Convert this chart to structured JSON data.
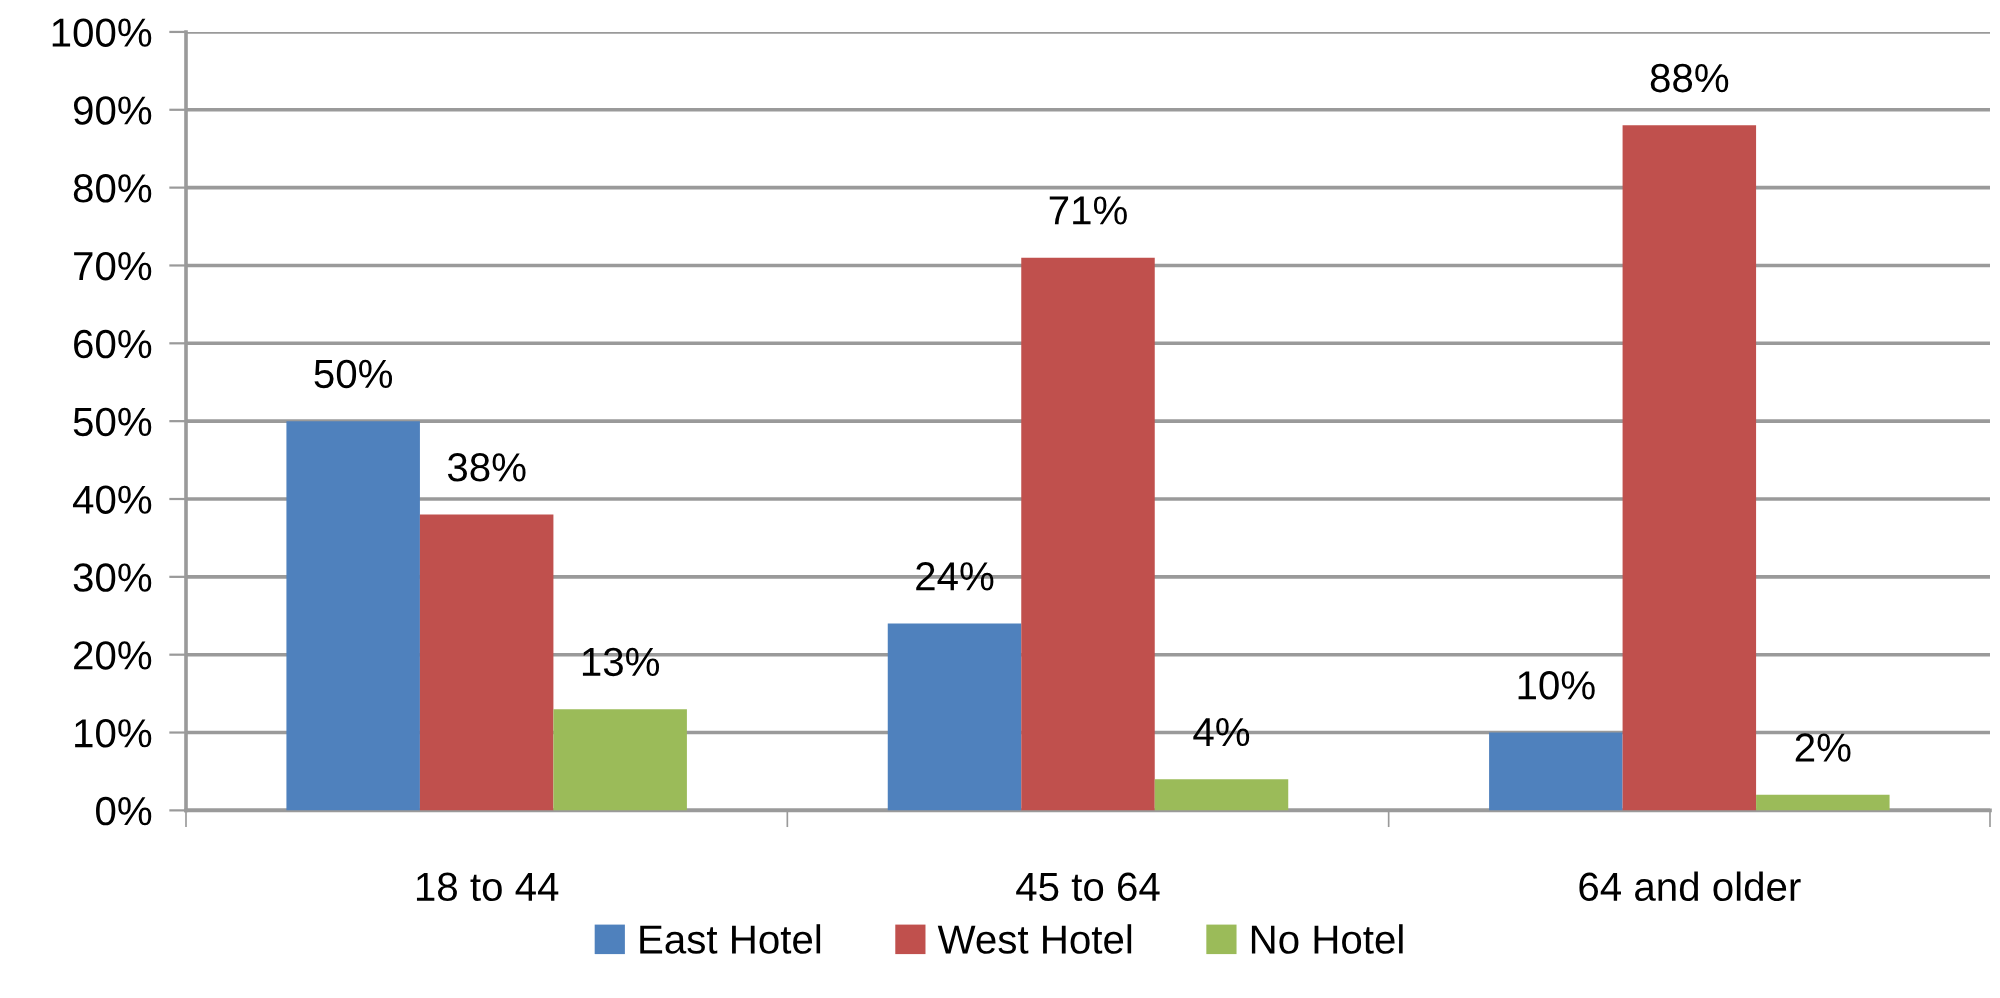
{
  "chart_data": {
    "type": "bar",
    "categories": [
      "18 to 44",
      "45 to 64",
      "64 and older"
    ],
    "series": [
      {
        "name": "East Hotel",
        "color": "#4f81bd",
        "values": [
          50,
          24,
          10
        ],
        "value_labels": [
          "50%",
          "24%",
          "10%"
        ]
      },
      {
        "name": "West Hotel",
        "color": "#c0504d",
        "values": [
          38,
          71,
          88
        ],
        "value_labels": [
          "38%",
          "71%",
          "88%"
        ]
      },
      {
        "name": "No Hotel",
        "color": "#9bbb59",
        "values": [
          13,
          4,
          2
        ],
        "value_labels": [
          "13%",
          "4%",
          "2%"
        ]
      }
    ],
    "ylim": [
      0,
      100
    ],
    "yticks": [
      {
        "value": 0,
        "label": "0%"
      },
      {
        "value": 10,
        "label": "10%"
      },
      {
        "value": 20,
        "label": "20%"
      },
      {
        "value": 30,
        "label": "30%"
      },
      {
        "value": 40,
        "label": "40%"
      },
      {
        "value": 50,
        "label": "50%"
      },
      {
        "value": 60,
        "label": "60%"
      },
      {
        "value": 70,
        "label": "70%"
      },
      {
        "value": 80,
        "label": "80%"
      },
      {
        "value": 90,
        "label": "90%"
      },
      {
        "value": 100,
        "label": "100%"
      }
    ],
    "grid": "y",
    "legend": "bottom"
  }
}
